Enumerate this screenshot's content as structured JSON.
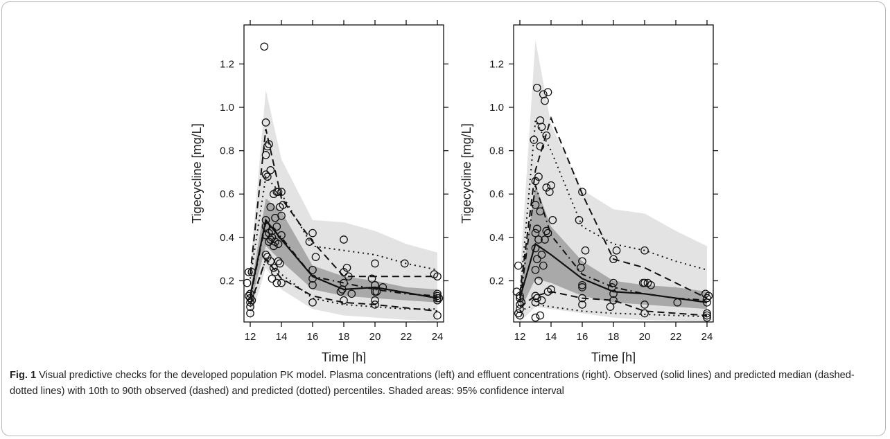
{
  "figure": {
    "fig_label": "Fig. 1",
    "caption_text": "Visual predictive checks for the developed population PK model. Plasma concentrations (left) and effluent concentrations (right). Observed (solid lines) and predicted median (dashed-dotted lines) with 10th to 90th observed (dashed) and predicted (dotted) percentiles. Shaded areas: 95% confidence interval"
  },
  "chart_data": [
    {
      "type": "scatter",
      "panel": "left",
      "title": "",
      "xlabel": "Time [h]",
      "ylabel": "Tigecycline [mg/L]",
      "xlim": [
        11.6,
        24.4
      ],
      "ylim": [
        0.01,
        1.38
      ],
      "xticks": [
        12,
        14,
        16,
        18,
        20,
        22,
        24
      ],
      "yticks": [
        0.2,
        0.4,
        0.6,
        0.8,
        1.0,
        1.2
      ],
      "ytick_labels": [
        "0.2",
        "0.4",
        "0.6",
        "0.8",
        "1.0",
        "1.2"
      ],
      "bands": {
        "outer_95ci": {
          "x": [
            12,
            13,
            14,
            16,
            18,
            20,
            22,
            24
          ],
          "lower": [
            0.02,
            0.26,
            0.16,
            0.07,
            0.04,
            0.03,
            0.02,
            0.015
          ],
          "upper": [
            0.26,
            1.08,
            0.76,
            0.48,
            0.47,
            0.43,
            0.37,
            0.33
          ]
        },
        "median_95ci": {
          "x": [
            12,
            13,
            14,
            16,
            18,
            20,
            22,
            24
          ],
          "lower": [
            0.09,
            0.36,
            0.29,
            0.16,
            0.13,
            0.12,
            0.11,
            0.1
          ],
          "upper": [
            0.15,
            0.58,
            0.52,
            0.27,
            0.22,
            0.2,
            0.17,
            0.16
          ]
        }
      },
      "series": [
        {
          "name": "observed median",
          "style": "solid",
          "x": [
            12,
            13,
            14,
            16,
            18,
            20,
            24
          ],
          "y": [
            0.13,
            0.48,
            0.39,
            0.22,
            0.16,
            0.17,
            0.12
          ]
        },
        {
          "name": "predicted median",
          "style": "dashdot",
          "x": [
            12,
            13,
            14,
            16,
            18,
            20,
            22,
            24
          ],
          "y": [
            0.12,
            0.47,
            0.4,
            0.22,
            0.19,
            0.16,
            0.14,
            0.13
          ]
        },
        {
          "name": "observed 10th percentile",
          "style": "dashed",
          "x": [
            12,
            13,
            14,
            16,
            18,
            20,
            24
          ],
          "y": [
            0.09,
            0.3,
            0.21,
            0.13,
            0.1,
            0.09,
            0.06
          ]
        },
        {
          "name": "observed 90th percentile",
          "style": "dashed",
          "x": [
            12,
            13,
            14,
            16,
            18,
            20,
            24
          ],
          "y": [
            0.23,
            0.9,
            0.58,
            0.38,
            0.22,
            0.22,
            0.22
          ]
        },
        {
          "name": "predicted 10th percentile",
          "style": "dotted",
          "x": [
            12,
            13,
            14,
            16,
            18,
            20,
            22,
            24
          ],
          "y": [
            0.08,
            0.3,
            0.23,
            0.12,
            0.09,
            0.08,
            0.07,
            0.07
          ]
        },
        {
          "name": "predicted 90th percentile",
          "style": "dotted",
          "x": [
            12,
            13,
            14,
            16,
            18,
            20,
            22,
            24
          ],
          "y": [
            0.21,
            0.68,
            0.6,
            0.36,
            0.34,
            0.32,
            0.28,
            0.25
          ]
        }
      ],
      "points": {
        "x": [
          11.8,
          11.9,
          11.9,
          12,
          12,
          12,
          12,
          12,
          12.1,
          12.1,
          12.9,
          13,
          13,
          13,
          13,
          13,
          13,
          13,
          13.1,
          13.1,
          13.1,
          13.2,
          13.2,
          13.2,
          13.3,
          13.3,
          13.3,
          13.3,
          13.4,
          13.4,
          13.4,
          13.5,
          13.5,
          13.5,
          13.6,
          13.6,
          13.6,
          13.7,
          13.7,
          13.7,
          13.8,
          13.8,
          13.8,
          13.9,
          13.9,
          14,
          14,
          14,
          14,
          14.1,
          15.8,
          16,
          16,
          16,
          16,
          16,
          16.2,
          17.8,
          17.9,
          18,
          18,
          18,
          18,
          18.2,
          18.3,
          18.5,
          19.8,
          20,
          20,
          20,
          20,
          20,
          20.1,
          20.5,
          21.9,
          23.8,
          24,
          24,
          24,
          24,
          24,
          24,
          24.1
        ],
        "y": [
          0.19,
          0.24,
          0.13,
          0.12,
          0.14,
          0.08,
          0.05,
          0.1,
          0.24,
          0.11,
          1.28,
          0.93,
          0.78,
          0.69,
          0.48,
          0.45,
          0.41,
          0.32,
          0.82,
          0.68,
          0.31,
          0.83,
          0.42,
          0.38,
          0.71,
          0.54,
          0.39,
          0.29,
          0.43,
          0.4,
          0.21,
          0.6,
          0.36,
          0.26,
          0.49,
          0.38,
          0.24,
          0.61,
          0.45,
          0.19,
          0.61,
          0.37,
          0.29,
          0.54,
          0.28,
          0.61,
          0.5,
          0.41,
          0.19,
          0.55,
          0.38,
          0.42,
          0.25,
          0.21,
          0.18,
          0.1,
          0.31,
          0.15,
          0.16,
          0.39,
          0.24,
          0.19,
          0.11,
          0.26,
          0.22,
          0.14,
          0.21,
          0.28,
          0.18,
          0.15,
          0.11,
          0.09,
          0.15,
          0.17,
          0.28,
          0.23,
          0.22,
          0.14,
          0.13,
          0.12,
          0.11,
          0.04,
          0.12
        ]
      }
    },
    {
      "type": "scatter",
      "panel": "right",
      "title": "",
      "xlabel": "Time [h]",
      "ylabel": "Tigecycline [mg/L]",
      "xlim": [
        11.6,
        24.4
      ],
      "ylim": [
        0.01,
        1.38
      ],
      "xticks": [
        12,
        14,
        16,
        18,
        20,
        22,
        24
      ],
      "yticks": [
        0.2,
        0.4,
        0.6,
        0.8,
        1.0,
        1.2
      ],
      "ytick_labels": [
        "0.2",
        "0.4",
        "0.6",
        "0.8",
        "1.0",
        "1.2"
      ],
      "bands": {
        "outer_95ci": {
          "x": [
            12,
            13,
            14,
            16,
            18,
            20,
            22,
            24
          ],
          "lower": [
            0.01,
            0.08,
            0.07,
            0.05,
            0.03,
            0.02,
            0.015,
            0.01
          ],
          "upper": [
            0.22,
            1.31,
            0.92,
            0.62,
            0.53,
            0.51,
            0.43,
            0.36
          ]
        },
        "median_95ci": {
          "x": [
            12,
            13,
            14,
            16,
            18,
            20,
            22,
            24
          ],
          "lower": [
            0.06,
            0.21,
            0.19,
            0.13,
            0.1,
            0.09,
            0.08,
            0.07
          ],
          "upper": [
            0.15,
            0.64,
            0.45,
            0.29,
            0.2,
            0.18,
            0.17,
            0.15
          ]
        }
      },
      "series": [
        {
          "name": "observed median",
          "style": "solid",
          "x": [
            12,
            13,
            14,
            16,
            18,
            20,
            24
          ],
          "y": [
            0.12,
            0.37,
            0.32,
            0.21,
            0.15,
            0.14,
            0.1
          ]
        },
        {
          "name": "predicted median",
          "style": "dashdot",
          "x": [
            12,
            13,
            14,
            16,
            18,
            20,
            22,
            24
          ],
          "y": [
            0.1,
            0.64,
            0.41,
            0.23,
            0.17,
            0.14,
            0.12,
            0.11
          ]
        },
        {
          "name": "observed 10th percentile",
          "style": "dashed",
          "x": [
            12,
            13,
            14,
            16,
            18,
            20,
            24
          ],
          "y": [
            0.08,
            0.13,
            0.15,
            0.12,
            0.11,
            0.06,
            0.04
          ]
        },
        {
          "name": "observed 90th percentile",
          "style": "dashed",
          "x": [
            12,
            13,
            14,
            16,
            18,
            20,
            24
          ],
          "y": [
            0.14,
            0.71,
            0.95,
            0.6,
            0.3,
            0.26,
            0.12
          ]
        },
        {
          "name": "predicted 10th percentile",
          "style": "dotted",
          "x": [
            12,
            13,
            14,
            16,
            18,
            20,
            22,
            24
          ],
          "y": [
            0.06,
            0.09,
            0.08,
            0.06,
            0.05,
            0.045,
            0.04,
            0.035
          ]
        },
        {
          "name": "predicted 90th percentile",
          "style": "dotted",
          "x": [
            12,
            13,
            14,
            16,
            18,
            20,
            22,
            24
          ],
          "y": [
            0.13,
            0.94,
            0.8,
            0.45,
            0.37,
            0.34,
            0.29,
            0.25
          ]
        }
      ],
      "points": {
        "x": [
          11.8,
          11.9,
          11.9,
          12,
          12,
          12,
          12,
          12,
          12.1,
          12.9,
          13,
          13,
          13,
          13,
          13,
          13,
          13,
          13,
          13.1,
          13.1,
          13.1,
          13.1,
          13.2,
          13.2,
          13.2,
          13.3,
          13.3,
          13.3,
          13.3,
          13.4,
          13.4,
          13.4,
          13.5,
          13.5,
          13.6,
          13.6,
          13.7,
          13.7,
          13.7,
          13.8,
          13.8,
          13.8,
          13.9,
          14,
          14,
          14.1,
          15.8,
          15.9,
          16,
          16,
          16,
          16,
          16,
          16,
          16.2,
          17.8,
          17.9,
          18,
          18,
          18,
          18,
          18.2,
          19.9,
          20,
          20,
          20,
          20,
          20.2,
          20.4,
          22.1,
          23.9,
          24,
          24,
          24,
          24,
          24,
          24.1
        ],
        "y": [
          0.15,
          0.27,
          0.05,
          0.12,
          0.09,
          0.04,
          0.13,
          0.07,
          0.1,
          0.85,
          0.66,
          0.55,
          0.42,
          0.35,
          0.25,
          0.13,
          0.1,
          0.03,
          1.09,
          0.44,
          0.3,
          0.12,
          0.68,
          0.39,
          0.2,
          0.94,
          0.82,
          0.52,
          0.04,
          0.91,
          0.32,
          0.11,
          1.06,
          0.27,
          1.03,
          0.39,
          0.87,
          0.63,
          0.43,
          1.07,
          0.42,
          0.15,
          0.61,
          0.64,
          0.16,
          0.48,
          0.48,
          0.26,
          0.61,
          0.29,
          0.18,
          0.17,
          0.12,
          0.09,
          0.34,
          0.08,
          0.17,
          0.3,
          0.19,
          0.14,
          0.11,
          0.34,
          0.19,
          0.34,
          0.19,
          0.09,
          0.05,
          0.19,
          0.18,
          0.1,
          0.14,
          0.12,
          0.05,
          0.04,
          0.03,
          0.1,
          0.13
        ]
      }
    }
  ]
}
